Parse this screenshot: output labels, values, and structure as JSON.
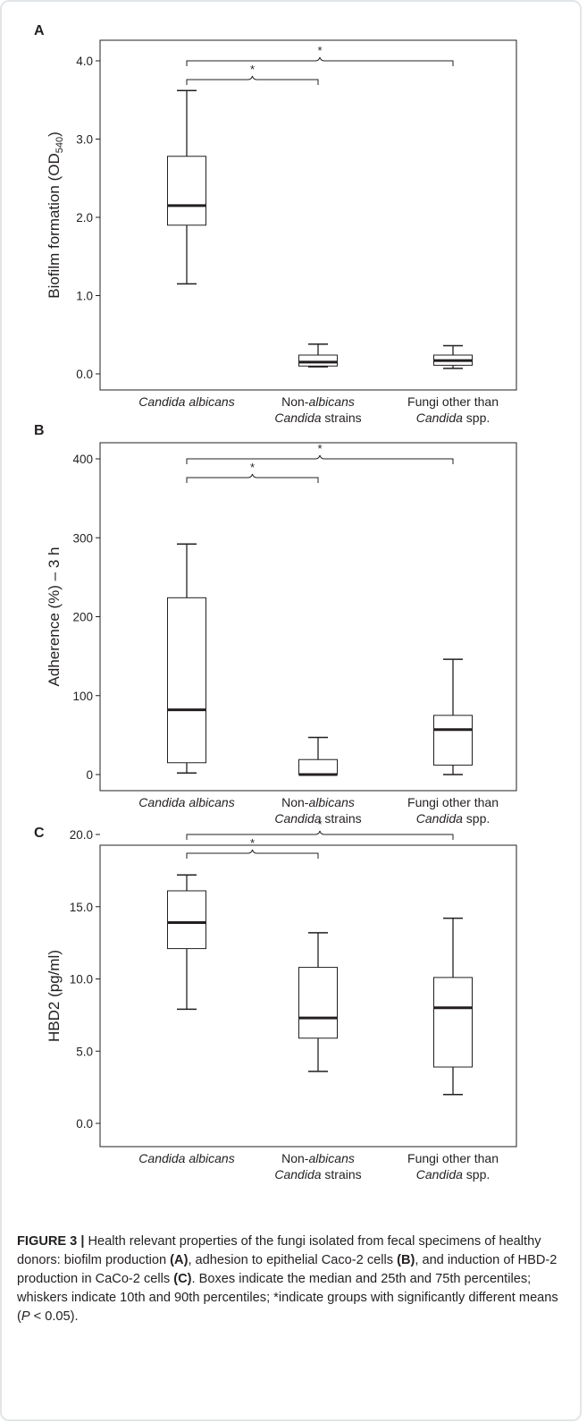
{
  "figure": {
    "panels": [
      {
        "label": "A",
        "ylabel_main": "Biofilm formation (OD",
        "ylabel_sub": "540",
        "ylabel_end": ")",
        "yticks": [
          "0.0",
          "1.0",
          "2.0",
          "3.0",
          "4.0"
        ],
        "sig_marks": [
          "*",
          "*"
        ],
        "categories": [
          [
            "Candida albicans",
            ""
          ],
          [
            "Non-albicans",
            "Candida strains"
          ],
          [
            "Fungi other than",
            "Candida spp."
          ]
        ]
      },
      {
        "label": "B",
        "ylabel_main": "Adherence (%) – 3 h",
        "ylabel_sub": "",
        "ylabel_end": "",
        "yticks": [
          "0",
          "100",
          "200",
          "300",
          "400"
        ],
        "sig_marks": [
          "*",
          "*"
        ],
        "categories": [
          [
            "Candida albicans",
            ""
          ],
          [
            "Non-albicans",
            "Candida strains"
          ],
          [
            "Fungi other than",
            "Candida spp."
          ]
        ]
      },
      {
        "label": "C",
        "ylabel_main": "HBD2 (pg/ml)",
        "ylabel_sub": "",
        "ylabel_end": "",
        "yticks": [
          "0.0",
          "5.0",
          "10.0",
          "15.0",
          "20.0"
        ],
        "sig_marks": [
          "*",
          "*"
        ],
        "categories": [
          [
            "Candida albicans",
            ""
          ],
          [
            "Non-albicans",
            "Candida strains"
          ],
          [
            "Fungi other than",
            "Candida spp."
          ]
        ]
      }
    ]
  },
  "caption": {
    "figure_label": "FIGURE 3 |",
    "text1": " Health relevant properties of the fungi isolated from fecal specimens of healthy donors: biofilm production ",
    "ref_a": "(A)",
    "text2": ", adhesion to epithelial Caco-2 cells ",
    "ref_b": "(B)",
    "text3": ", and induction of HBD-2 production in CaCo-2 cells ",
    "ref_c": "(C)",
    "text4": ". Boxes indicate the median and 25th and 75th percentiles; whiskers indicate 10th and 90th percentiles; *indicate groups with significantly different means (",
    "p_italic": "P",
    "text5": " < 0.05)."
  },
  "chart_data": [
    {
      "type": "box",
      "panel": "A",
      "ylabel": "Biofilm formation (OD540)",
      "ylim": [
        0,
        4.0
      ],
      "yticks": [
        0,
        1.0,
        2.0,
        3.0,
        4.0
      ],
      "categories": [
        "Candida albicans",
        "Non-albicans Candida strains",
        "Fungi other than Candida spp."
      ],
      "boxes": [
        {
          "whisker_low": 1.15,
          "q1": 1.9,
          "median": 2.15,
          "q3": 2.78,
          "whisker_high": 3.62
        },
        {
          "whisker_low": 0.09,
          "q1": 0.1,
          "median": 0.15,
          "q3": 0.24,
          "whisker_high": 0.38
        },
        {
          "whisker_low": 0.07,
          "q1": 0.11,
          "median": 0.17,
          "q3": 0.24,
          "whisker_high": 0.36
        }
      ],
      "significance": [
        {
          "from": 0,
          "to": 1,
          "label": "*"
        },
        {
          "from": 0,
          "to": 2,
          "label": "*"
        }
      ]
    },
    {
      "type": "box",
      "panel": "B",
      "ylabel": "Adherence (%) – 3 h",
      "ylim": [
        0,
        400
      ],
      "yticks": [
        0,
        100,
        200,
        300,
        400
      ],
      "categories": [
        "Candida albicans",
        "Non-albicans Candida strains",
        "Fungi other than Candida spp."
      ],
      "boxes": [
        {
          "whisker_low": 2,
          "q1": 15,
          "median": 82,
          "q3": 224,
          "whisker_high": 292
        },
        {
          "whisker_low": 0,
          "q1": 0,
          "median": 0,
          "q3": 19,
          "whisker_high": 47
        },
        {
          "whisker_low": 0,
          "q1": 12,
          "median": 57,
          "q3": 75,
          "whisker_high": 146
        }
      ],
      "significance": [
        {
          "from": 0,
          "to": 1,
          "label": "*"
        },
        {
          "from": 0,
          "to": 2,
          "label": "*"
        }
      ]
    },
    {
      "type": "box",
      "panel": "C",
      "ylabel": "HBD2 (pg/ml)",
      "ylim": [
        0,
        20.0
      ],
      "yticks": [
        0,
        5.0,
        10.0,
        15.0,
        20.0
      ],
      "categories": [
        "Candida albicans",
        "Non-albicans Candida strains",
        "Fungi other than Candida spp."
      ],
      "boxes": [
        {
          "whisker_low": 7.9,
          "q1": 12.1,
          "median": 13.9,
          "q3": 16.1,
          "whisker_high": 17.2
        },
        {
          "whisker_low": 3.6,
          "q1": 5.9,
          "median": 7.3,
          "q3": 10.8,
          "whisker_high": 13.2
        },
        {
          "whisker_low": 2.0,
          "q1": 3.9,
          "median": 8.0,
          "q3": 10.1,
          "whisker_high": 14.2
        }
      ],
      "significance": [
        {
          "from": 0,
          "to": 1,
          "label": "*"
        },
        {
          "from": 0,
          "to": 2,
          "label": "*"
        }
      ]
    }
  ]
}
